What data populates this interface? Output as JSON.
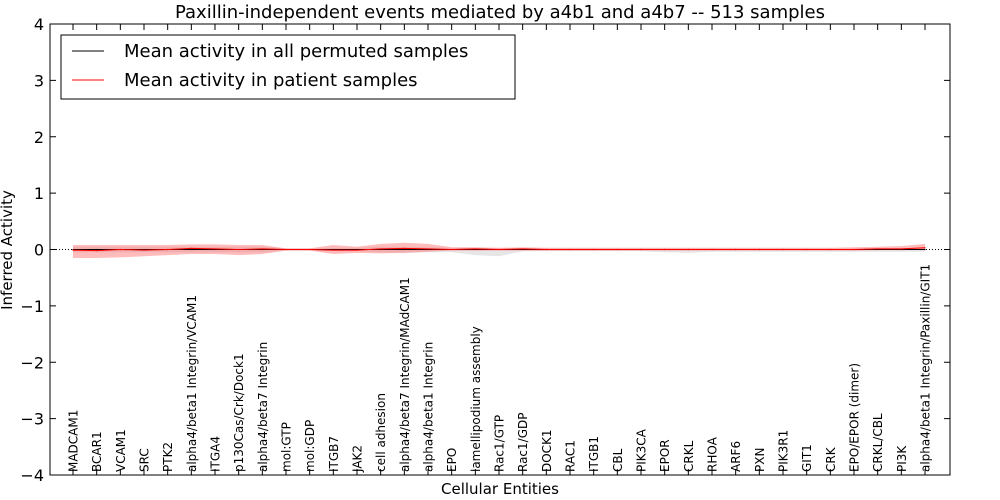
{
  "chart_data": {
    "type": "line",
    "title": "Paxillin-independent events mediated by a4b1 and a4b7 -- 513 samples",
    "xlabel": "Cellular Entities",
    "ylabel": "Inferred Activity",
    "ylim": [
      -4,
      4
    ],
    "yticks": [
      -4,
      -3,
      -2,
      -1,
      0,
      1,
      2,
      3,
      4
    ],
    "ytick_labels": [
      "−4",
      "−3",
      "−2",
      "−1",
      "0",
      "1",
      "2",
      "3",
      "4"
    ],
    "legend_position": "top-left",
    "categories": [
      "MADCAM1",
      "BCAR1",
      "VCAM1",
      "SRC",
      "PTK2",
      "alpha4/beta1 Integrin/VCAM1",
      "ITGA4",
      "p130Cas/Crk/Dock1",
      "alpha4/beta7 Integrin",
      "mol:GTP",
      "mol:GDP",
      "ITGB7",
      "JAK2",
      "cell adhesion",
      "alpha4/beta7 Integrin/MAdCAM1",
      "alpha4/beta1 Integrin",
      "EPO",
      "lamellipodium assembly",
      "Rac1/GTP",
      "Rac1/GDP",
      "DOCK1",
      "RAC1",
      "ITGB1",
      "CBL",
      "PIK3CA",
      "EPOR",
      "CRKL",
      "RHOA",
      "ARF6",
      "PXN",
      "PIK3R1",
      "GIT1",
      "CRK",
      "EPO/EPOR (dimer)",
      "CRKL/CBL",
      "PI3K",
      "alpha4/beta1 Integrin/Paxillin/GIT1"
    ],
    "series": [
      {
        "name": "Mean activity in all permuted samples",
        "color": "#000000",
        "values": [
          0.0,
          0.0,
          0.0,
          0.0,
          0.0,
          0.0,
          0.0,
          0.0,
          0.0,
          0.0,
          0.0,
          0.0,
          0.0,
          0.0,
          0.0,
          0.0,
          0.0,
          0.0,
          0.0,
          0.0,
          0.0,
          0.0,
          0.0,
          0.0,
          0.0,
          0.0,
          0.0,
          0.0,
          0.0,
          0.0,
          0.0,
          0.0,
          0.0,
          0.0,
          0.0,
          0.0,
          0.0
        ],
        "band_upper": [
          0.05,
          0.05,
          0.05,
          0.05,
          0.05,
          0.05,
          0.05,
          0.05,
          0.05,
          0.02,
          0.02,
          0.03,
          0.03,
          0.05,
          0.05,
          0.04,
          0.03,
          0.03,
          0.02,
          0.02,
          0.02,
          0.02,
          0.02,
          0.02,
          0.02,
          0.02,
          0.02,
          0.02,
          0.02,
          0.02,
          0.02,
          0.02,
          0.02,
          0.02,
          0.02,
          0.02,
          0.02
        ],
        "band_lower": [
          -0.05,
          -0.05,
          -0.05,
          -0.05,
          -0.05,
          -0.05,
          -0.05,
          -0.05,
          -0.05,
          -0.02,
          -0.02,
          -0.03,
          -0.03,
          -0.05,
          -0.06,
          -0.05,
          -0.05,
          -0.1,
          -0.12,
          -0.03,
          -0.03,
          -0.03,
          -0.03,
          -0.03,
          -0.03,
          -0.05,
          -0.06,
          -0.04,
          -0.04,
          -0.04,
          -0.04,
          -0.04,
          -0.04,
          -0.04,
          -0.04,
          -0.04,
          -0.04
        ]
      },
      {
        "name": "Mean activity in patient samples",
        "color": "#ff0000",
        "values": [
          -0.01,
          -0.02,
          0.0,
          -0.01,
          0.0,
          0.02,
          0.01,
          0.0,
          0.01,
          0.0,
          0.0,
          -0.01,
          -0.01,
          0.01,
          0.02,
          0.01,
          0.0,
          0.01,
          0.0,
          0.01,
          0.0,
          0.0,
          0.0,
          0.0,
          0.0,
          0.0,
          0.0,
          0.0,
          0.0,
          0.0,
          0.0,
          0.0,
          0.0,
          0.0,
          0.01,
          0.01,
          0.03
        ],
        "band_upper": [
          0.08,
          0.08,
          0.08,
          0.08,
          0.08,
          0.09,
          0.09,
          0.08,
          0.08,
          0.02,
          0.02,
          0.08,
          0.05,
          0.1,
          0.12,
          0.1,
          0.04,
          0.04,
          0.03,
          0.04,
          0.03,
          0.03,
          0.03,
          0.03,
          0.03,
          0.03,
          0.03,
          0.03,
          0.03,
          0.03,
          0.03,
          0.03,
          0.03,
          0.04,
          0.05,
          0.06,
          0.1
        ],
        "band_lower": [
          -0.15,
          -0.15,
          -0.14,
          -0.12,
          -0.1,
          -0.08,
          -0.08,
          -0.1,
          -0.08,
          -0.02,
          -0.02,
          -0.08,
          -0.06,
          -0.07,
          -0.06,
          -0.04,
          -0.02,
          -0.02,
          -0.02,
          -0.02,
          -0.02,
          -0.02,
          -0.02,
          -0.02,
          -0.02,
          -0.02,
          -0.02,
          -0.02,
          -0.02,
          -0.02,
          -0.02,
          -0.02,
          -0.02,
          -0.02,
          -0.01,
          -0.01,
          0.0
        ]
      }
    ]
  }
}
